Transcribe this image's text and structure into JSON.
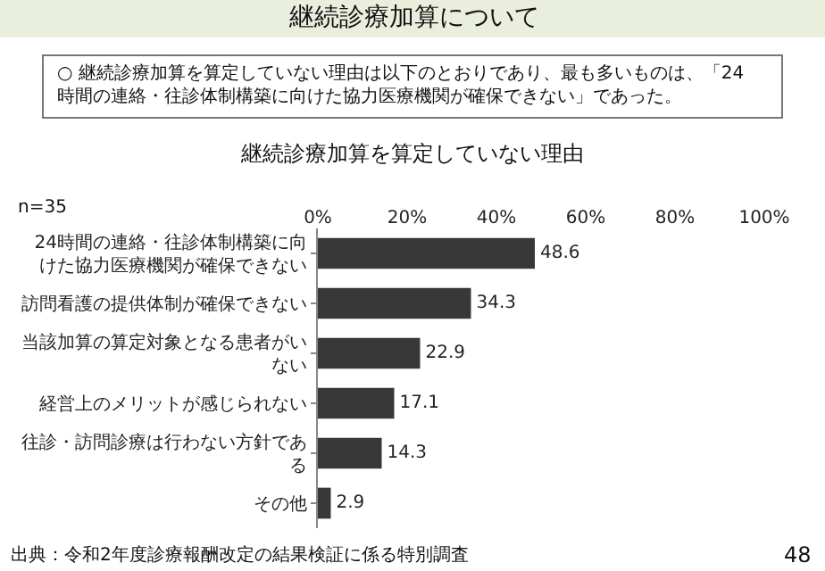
{
  "chart_data": {
    "type": "bar",
    "orientation": "horizontal",
    "title": "継続診療加算を算定していない理由",
    "categories": [
      "24時間の連絡・往診体制構築に向けた協力医療機関が確保できない",
      "訪問看護の提供体制が確保できない",
      "当該加算の算定対象となる患者がいない",
      "経営上のメリットが感じられない",
      "往診・訪問診療は行わない方針である",
      "その他"
    ],
    "values": [
      48.6,
      34.3,
      22.9,
      17.1,
      14.3,
      2.9
    ],
    "color": "#383838",
    "xlim": [
      0,
      100
    ],
    "xticks": [
      {
        "value": 0,
        "label": "0%"
      },
      {
        "value": 20,
        "label": "20%"
      },
      {
        "value": 40,
        "label": "40%"
      },
      {
        "value": 60,
        "label": "60%"
      },
      {
        "value": 80,
        "label": "80%"
      },
      {
        "value": 100,
        "label": "100%"
      }
    ],
    "data_labels": true,
    "legend": false,
    "annotations": [
      "継続診療加算について",
      "○ 継続診療加算を算定していない理由は以下のとおりであり、最も多いものは、「24時間の連絡・往診体制構築に向けた協力医療機関が確保できない」であった。",
      "n=35",
      "出典：令和2年度診療報酬改定の結果検証に係る特別調査",
      "48"
    ]
  }
}
